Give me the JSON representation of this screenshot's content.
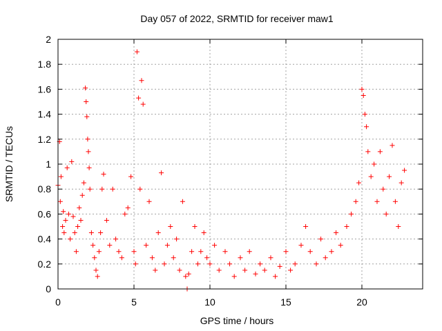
{
  "chart_data": {
    "type": "scatter",
    "title": "Day 057 of 2022, SRMTID for receiver maw1",
    "xlabel": "GPS time / hours",
    "ylabel": "SRMTID / TECUs",
    "xlim": [
      0,
      24
    ],
    "ylim": [
      0,
      2
    ],
    "xticks": [
      0,
      5,
      10,
      15,
      20
    ],
    "xtick_labels": [
      "0",
      "5",
      "10",
      "15",
      "20"
    ],
    "yticks": [
      0,
      0.2,
      0.4,
      0.6,
      0.8,
      1,
      1.2,
      1.4,
      1.6,
      1.8,
      2
    ],
    "ytick_labels": [
      "0",
      "0.2",
      "0.4",
      "0.6",
      "0.8",
      "1",
      "1.2",
      "1.4",
      "1.6",
      "1.8",
      "2"
    ],
    "grid": true,
    "marker": "plus",
    "color": "#ff0000",
    "series": [
      {
        "name": "SRMTID",
        "x": [
          0.0,
          0.1,
          0.15,
          0.2,
          0.3,
          0.35,
          0.4,
          0.5,
          0.6,
          0.7,
          0.8,
          0.9,
          1.0,
          1.1,
          1.2,
          1.3,
          1.4,
          1.5,
          1.6,
          1.7,
          1.8,
          1.85,
          1.9,
          1.95,
          2.0,
          2.05,
          2.1,
          2.2,
          2.3,
          2.4,
          2.5,
          2.6,
          2.7,
          2.8,
          2.9,
          3.0,
          3.2,
          3.4,
          3.6,
          3.8,
          4.0,
          4.2,
          4.4,
          4.6,
          4.8,
          5.0,
          5.1,
          5.2,
          5.3,
          5.4,
          5.5,
          5.6,
          5.8,
          6.0,
          6.2,
          6.4,
          6.6,
          6.8,
          7.0,
          7.2,
          7.4,
          7.6,
          7.8,
          8.0,
          8.2,
          8.4,
          8.5,
          8.6,
          8.8,
          9.0,
          9.2,
          9.4,
          9.6,
          9.8,
          10.0,
          10.3,
          10.6,
          11.0,
          11.3,
          11.6,
          12.0,
          12.3,
          12.6,
          13.0,
          13.3,
          13.6,
          14.0,
          14.3,
          14.6,
          15.0,
          15.3,
          15.6,
          16.0,
          16.3,
          16.6,
          17.0,
          17.3,
          17.6,
          18.0,
          18.3,
          18.6,
          19.0,
          19.3,
          19.6,
          19.8,
          20.0,
          20.1,
          20.2,
          20.3,
          20.4,
          20.6,
          20.8,
          21.0,
          21.2,
          21.4,
          21.6,
          21.8,
          22.0,
          22.2,
          22.4,
          22.6,
          22.8
        ],
        "values": [
          0.83,
          1.18,
          0.7,
          0.9,
          0.5,
          0.62,
          0.45,
          0.55,
          0.97,
          0.6,
          0.4,
          1.02,
          0.58,
          0.45,
          0.3,
          0.5,
          0.65,
          0.55,
          0.75,
          0.85,
          1.61,
          1.5,
          1.38,
          1.2,
          1.1,
          0.97,
          0.8,
          0.45,
          0.35,
          0.25,
          0.15,
          0.1,
          0.3,
          0.45,
          0.8,
          0.92,
          0.55,
          0.35,
          0.8,
          0.4,
          0.3,
          0.25,
          0.6,
          0.65,
          0.9,
          0.3,
          0.2,
          1.9,
          1.53,
          0.8,
          1.67,
          1.48,
          0.35,
          0.7,
          0.25,
          0.15,
          0.45,
          0.93,
          0.2,
          0.35,
          0.5,
          0.25,
          0.4,
          0.15,
          0.7,
          0.1,
          0.0,
          0.12,
          0.3,
          0.5,
          0.2,
          0.3,
          0.45,
          0.25,
          0.2,
          0.35,
          0.15,
          0.3,
          0.2,
          0.1,
          0.25,
          0.15,
          0.3,
          0.12,
          0.2,
          0.15,
          0.25,
          0.1,
          0.18,
          0.3,
          0.15,
          0.2,
          0.35,
          0.5,
          0.3,
          0.2,
          0.4,
          0.25,
          0.3,
          0.45,
          0.35,
          0.5,
          0.6,
          0.7,
          0.85,
          1.6,
          1.55,
          1.4,
          1.3,
          1.1,
          0.9,
          1.0,
          0.7,
          1.1,
          0.8,
          0.6,
          0.9,
          1.15,
          0.7,
          0.5,
          0.85,
          0.95
        ]
      }
    ]
  }
}
